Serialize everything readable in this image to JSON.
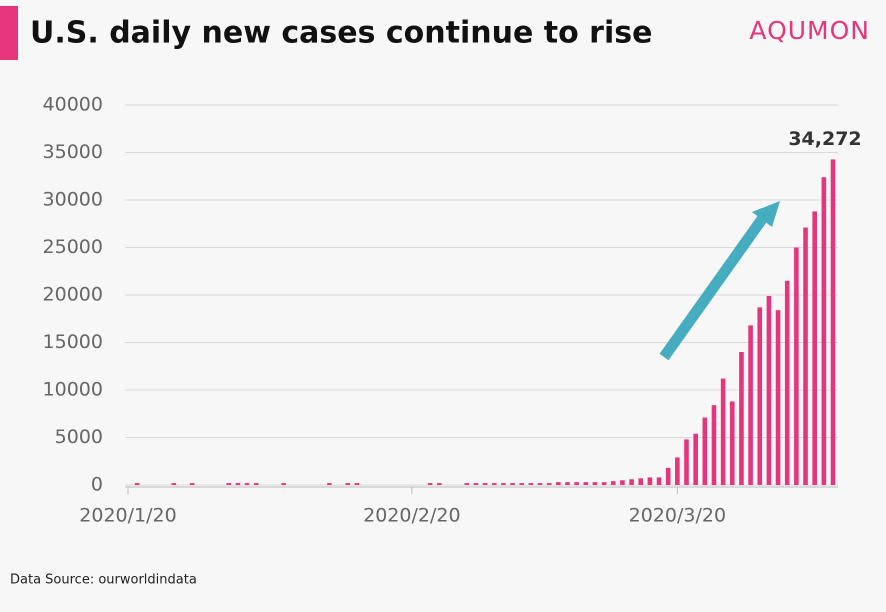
{
  "chart_data": {
    "type": "bar",
    "title": "U.S. daily new cases continue to rise",
    "brand": "AQUMON",
    "source": "Data Source: ourworldindata",
    "color": "#e6357c",
    "grid": true,
    "ylim": [
      0,
      40000
    ],
    "yticks": [
      0,
      5000,
      10000,
      15000,
      20000,
      25000,
      30000,
      35000,
      40000
    ],
    "categories": [
      "2020/1/20",
      null,
      null,
      null,
      null,
      null,
      null,
      null,
      null,
      null,
      null,
      null,
      null,
      null,
      null,
      null,
      null,
      null,
      null,
      null,
      null,
      null,
      null,
      null,
      null,
      null,
      null,
      null,
      null,
      null,
      null,
      "2020/2/20",
      null,
      null,
      null,
      null,
      null,
      null,
      null,
      null,
      null,
      null,
      null,
      null,
      null,
      null,
      null,
      null,
      null,
      null,
      null,
      null,
      null,
      null,
      null,
      null,
      null,
      null,
      null,
      null,
      "2020/3/20",
      null,
      null,
      null,
      null,
      null,
      null,
      null,
      null,
      null,
      null,
      null,
      null,
      null,
      null,
      null,
      null,
      null
    ],
    "values": [
      0,
      200,
      0,
      0,
      0,
      200,
      0,
      200,
      0,
      0,
      0,
      200,
      200,
      200,
      200,
      0,
      0,
      200,
      0,
      0,
      0,
      0,
      200,
      0,
      200,
      200,
      0,
      0,
      0,
      0,
      0,
      0,
      0,
      200,
      200,
      0,
      0,
      200,
      200,
      200,
      200,
      200,
      200,
      200,
      200,
      200,
      200,
      300,
      300,
      300,
      300,
      300,
      300,
      400,
      500,
      600,
      700,
      800,
      800,
      1800,
      2900,
      4800,
      5400,
      7100,
      8400,
      11200,
      8800,
      14000,
      16800,
      18700,
      19900,
      18400,
      21500,
      25000,
      27100,
      28800,
      32400,
      34272
    ],
    "value_labels": [
      null,
      null,
      null,
      null,
      null,
      null,
      null,
      null,
      null,
      null,
      null,
      null,
      null,
      null,
      null,
      null,
      null,
      null,
      null,
      null,
      null,
      null,
      null,
      null,
      null,
      null,
      null,
      null,
      null,
      null,
      null,
      null,
      null,
      null,
      null,
      null,
      null,
      null,
      null,
      null,
      null,
      null,
      null,
      null,
      null,
      null,
      null,
      null,
      null,
      null,
      null,
      null,
      null,
      null,
      null,
      null,
      null,
      null,
      null,
      null,
      null,
      null,
      null,
      null,
      null,
      null,
      null,
      null,
      null,
      null,
      null,
      null,
      null,
      null,
      null,
      null,
      null,
      "34,272"
    ]
  }
}
